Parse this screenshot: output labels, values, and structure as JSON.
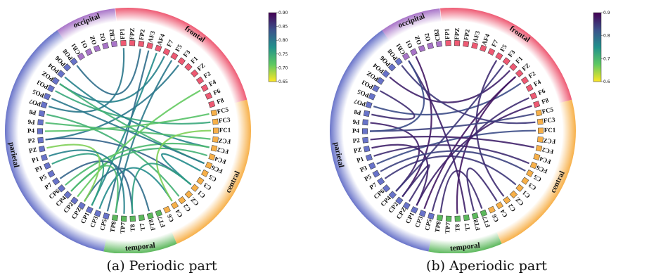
{
  "channels": [
    "FP1",
    "FPZ",
    "FP2",
    "AF3",
    "AF4",
    "F7",
    "F5",
    "F3",
    "F1",
    "FZ",
    "F2",
    "F4",
    "F6",
    "F8",
    "FC5",
    "FC3",
    "FC1",
    "FCZ",
    "FC2",
    "FC4",
    "FC6",
    "C5",
    "C3",
    "C1",
    "CZ",
    "C2",
    "C4",
    "C6",
    "FT7",
    "FT8",
    "T7",
    "T8",
    "TP7",
    "TP8",
    "CP5",
    "CP3",
    "CP1",
    "CPZ",
    "CP2",
    "CP4",
    "CP6",
    "P7",
    "P5",
    "P3",
    "P1",
    "PZ",
    "P2",
    "P4",
    "P6",
    "P8",
    "PO7",
    "PO5",
    "PO3",
    "POZ",
    "PO4",
    "PO6",
    "PO8",
    "CB1",
    "O1",
    "OZ",
    "O2",
    "CB2"
  ],
  "regions": [
    {
      "label": "frontal",
      "color": "#ee5a73",
      "start": "FP1",
      "end": "F8"
    },
    {
      "label": "central",
      "color": "#f7b049",
      "start": "FC5",
      "end": "C6"
    },
    {
      "label": "temporal",
      "color": "#5cb85c",
      "start": "FT7",
      "end": "TP8"
    },
    {
      "label": "parietal",
      "color": "#6873c9",
      "start": "CP5",
      "end": "PO8"
    },
    {
      "label": "occipital",
      "color": "#a874c8",
      "start": "CB1",
      "end": "CB2"
    }
  ],
  "panels": [
    {
      "caption": "(a) Periodic part",
      "colorbar": {
        "min": 0.65,
        "max": 0.9,
        "ticks": [
          "0.90",
          "0.85",
          "0.80",
          "0.75",
          "0.70",
          "0.65"
        ]
      },
      "connections": [
        [
          "AF4",
          "CP1",
          0.78
        ],
        [
          "F3",
          "P2",
          0.8
        ],
        [
          "F5",
          "TP8",
          0.8
        ],
        [
          "F7",
          "POZ",
          0.79
        ],
        [
          "AF3",
          "CP5",
          0.81
        ],
        [
          "PO8",
          "FP2",
          0.81
        ],
        [
          "PO7",
          "FP1",
          0.8
        ],
        [
          "PO3",
          "FC3",
          0.75
        ],
        [
          "PO4",
          "FC2",
          0.79
        ],
        [
          "POZ",
          "FC6",
          0.74
        ],
        [
          "P8",
          "C2",
          0.74
        ],
        [
          "P4",
          "FC5",
          0.72
        ],
        [
          "P6",
          "FCZ",
          0.73
        ],
        [
          "P2",
          "C1",
          0.82
        ],
        [
          "CP6",
          "FC2",
          0.73
        ],
        [
          "CP4",
          "FC4",
          0.74
        ],
        [
          "CP2",
          "F4",
          0.71
        ],
        [
          "CP3",
          "C4",
          0.78
        ],
        [
          "P3",
          "CP1",
          0.76
        ],
        [
          "CP4",
          "TP8",
          0.73
        ],
        [
          "CPZ",
          "FT8",
          0.81
        ],
        [
          "P7",
          "T8",
          0.82
        ],
        [
          "PZ",
          "CPZ",
          0.7
        ],
        [
          "C5",
          "C1",
          0.78
        ],
        [
          "PO5",
          "FC6",
          0.8
        ],
        [
          "C4",
          "FC1",
          0.7
        ],
        [
          "P1",
          "TP7",
          0.79
        ],
        [
          "T8",
          "C1",
          0.76
        ]
      ]
    },
    {
      "caption": "(b) Aperiodic part",
      "colorbar": {
        "min": 0.6,
        "max": 0.9,
        "ticks": [
          "0.9",
          "0.8",
          "0.7",
          "0.6"
        ]
      },
      "connections": [
        [
          "O1",
          "CP2",
          0.88
        ],
        [
          "PO4",
          "F1",
          0.87
        ],
        [
          "P3",
          "FC1",
          0.83
        ],
        [
          "P2",
          "FC2",
          0.87
        ],
        [
          "PO7",
          "F2",
          0.83
        ],
        [
          "P7",
          "C1",
          0.85
        ],
        [
          "P1",
          "FC6",
          0.86
        ],
        [
          "P6",
          "CP4",
          0.87
        ],
        [
          "CP5",
          "F6",
          0.86
        ],
        [
          "CP3",
          "FZ",
          0.88
        ],
        [
          "CP1",
          "F8",
          0.87
        ],
        [
          "CPZ",
          "CP2",
          0.86
        ],
        [
          "TP8",
          "FT7",
          0.86
        ],
        [
          "T8",
          "FZ",
          0.88
        ],
        [
          "C2",
          "F5",
          0.86
        ],
        [
          "CP4",
          "F3",
          0.85
        ],
        [
          "FT8",
          "C4",
          0.86
        ],
        [
          "P8",
          "PO3",
          0.86
        ],
        [
          "P4",
          "FC5",
          0.84
        ],
        [
          "CB1",
          "T7",
          0.87
        ],
        [
          "PO8",
          "FC3",
          0.85
        ],
        [
          "PZ",
          "CP1",
          0.87
        ],
        [
          "P5",
          "C5",
          0.84
        ],
        [
          "CB1",
          "P4",
          0.83
        ]
      ]
    }
  ]
}
